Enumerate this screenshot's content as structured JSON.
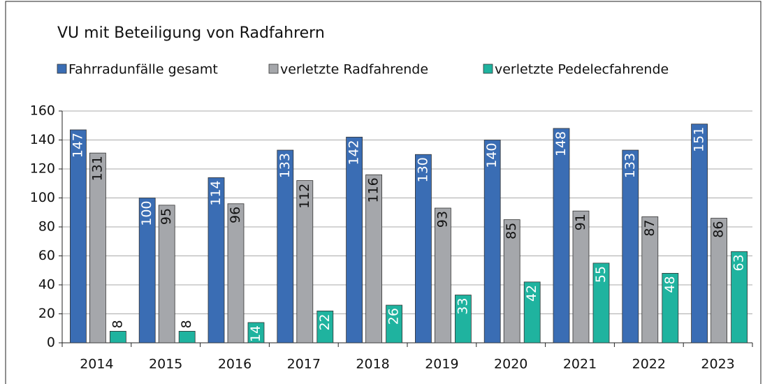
{
  "chart_data": {
    "type": "bar",
    "title": "VU mit Beteiligung von Radfahrern",
    "categories": [
      "2014",
      "2015",
      "2016",
      "2017",
      "2018",
      "2019",
      "2020",
      "2021",
      "2022",
      "2023"
    ],
    "series": [
      {
        "name": "Fahrradunfälle gesamt",
        "color": "#3a6db4",
        "values": [
          147,
          100,
          114,
          133,
          142,
          130,
          140,
          148,
          133,
          151
        ]
      },
      {
        "name": "verletzte Radfahrende",
        "color": "#a5a7ab",
        "values": [
          131,
          95,
          96,
          112,
          116,
          93,
          85,
          91,
          87,
          86
        ]
      },
      {
        "name": "verletzte Pedelecfahrende",
        "color": "#1fb39f",
        "values": [
          8,
          8,
          14,
          22,
          26,
          33,
          42,
          55,
          48,
          63
        ]
      }
    ],
    "ylim": [
      0,
      160
    ],
    "yticks": [
      0,
      20,
      40,
      60,
      80,
      100,
      120,
      140,
      160
    ],
    "grid": true,
    "legend": "top"
  }
}
